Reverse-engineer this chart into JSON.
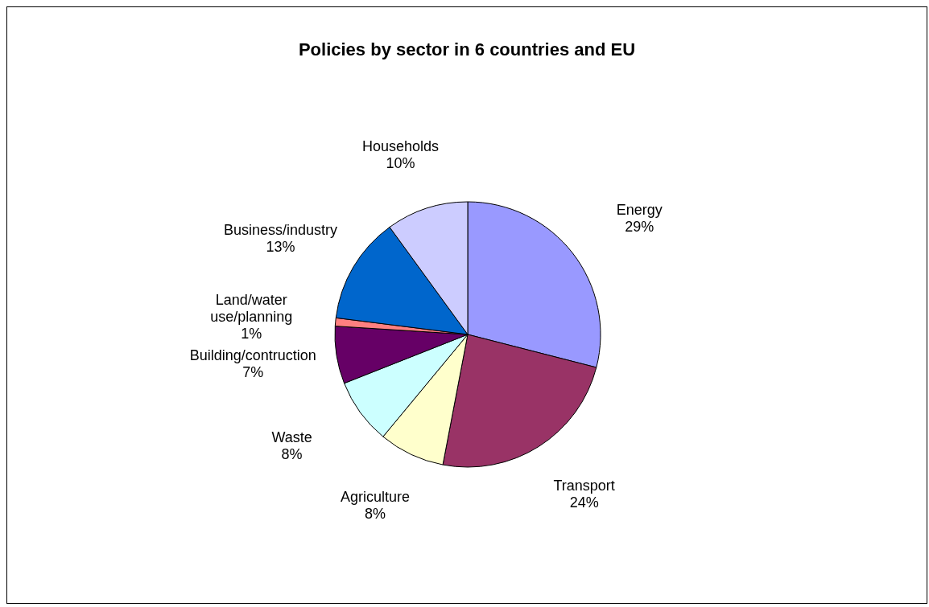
{
  "chart_data": {
    "type": "pie",
    "title": "Policies by sector in 6 countries and EU",
    "categories": [
      "Energy",
      "Transport",
      "Agriculture",
      "Waste",
      "Building/contruction",
      "Land/water use/planning",
      "Business/industry",
      "Households"
    ],
    "values": [
      29,
      24,
      8,
      8,
      7,
      1,
      13,
      10
    ],
    "colors": [
      "#9999ff",
      "#993366",
      "#ffffcc",
      "#ccffff",
      "#660066",
      "#ff8080",
      "#0066cc",
      "#ccccff"
    ],
    "value_labels": [
      "29%",
      "24%",
      "8%",
      "8%",
      "7%",
      "1%",
      "13%",
      "10%"
    ]
  }
}
